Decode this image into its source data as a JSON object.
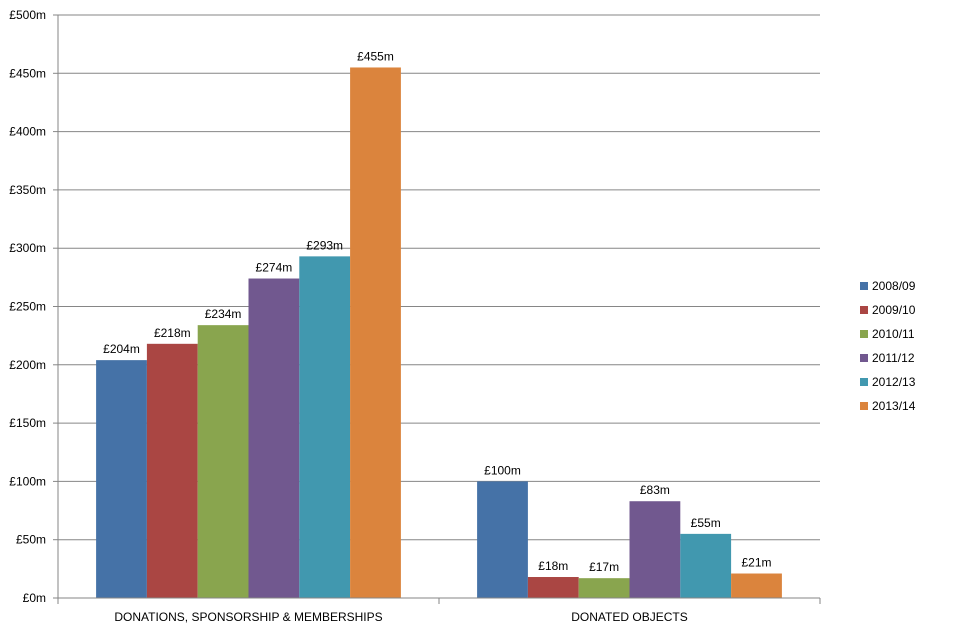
{
  "chart_data": {
    "type": "bar",
    "title": "",
    "xlabel": "",
    "ylabel": "",
    "ylim": [
      0,
      500
    ],
    "ytick_step": 50,
    "ytick_labels": [
      "£0m",
      "£50m",
      "£100m",
      "£150m",
      "£200m",
      "£250m",
      "£300m",
      "£350m",
      "£400m",
      "£450m",
      "£500m"
    ],
    "grid": true,
    "legend_position": "right",
    "categories": [
      "DONATIONS, SPONSORSHIP & MEMBERSHIPS",
      "DONATED OBJECTS"
    ],
    "series": [
      {
        "name": "2008/09",
        "color": "#4572a7",
        "values": [
          204,
          100
        ],
        "labels": [
          "£204m",
          "£100m"
        ]
      },
      {
        "name": "2009/10",
        "color": "#aa4643",
        "values": [
          218,
          18
        ],
        "labels": [
          "£218m",
          "£18m"
        ]
      },
      {
        "name": "2010/11",
        "color": "#89a54e",
        "values": [
          234,
          17
        ],
        "labels": [
          "£234m",
          "£17m"
        ]
      },
      {
        "name": "2011/12",
        "color": "#71588f",
        "values": [
          274,
          83
        ],
        "labels": [
          "£274m",
          "£83m"
        ]
      },
      {
        "name": "2012/13",
        "color": "#4198af",
        "values": [
          293,
          55
        ],
        "labels": [
          "£293m",
          "£55m"
        ]
      },
      {
        "name": "2013/14",
        "color": "#db843d",
        "values": [
          455,
          21
        ],
        "labels": [
          "£455m",
          "£21m"
        ]
      }
    ],
    "axis_color": "#868686",
    "grid_color": "#868686"
  }
}
